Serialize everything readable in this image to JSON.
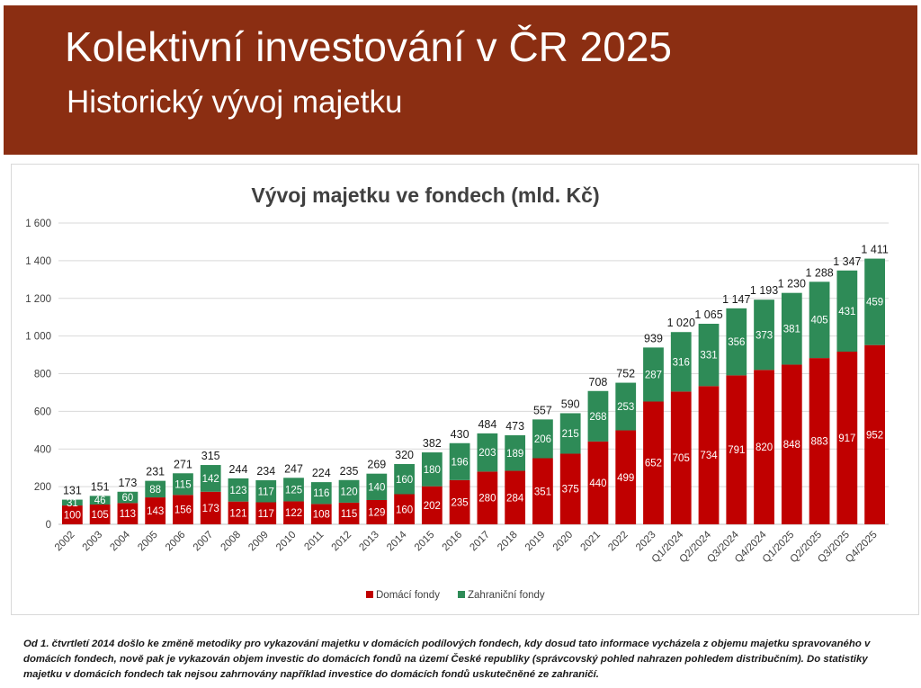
{
  "header": {
    "title": "Kolektivní investování v ČR 2025",
    "subtitle": "Historický vývoj majetku"
  },
  "colors": {
    "banner": "#8b2e12",
    "domestic": "#c00000",
    "foreign": "#2e8b57"
  },
  "chart_data": {
    "type": "bar",
    "stacked": true,
    "title": "Vývoj majetku ve fondech (mld. Kč)",
    "xlabel": "",
    "ylabel": "",
    "ylim": [
      0,
      1600
    ],
    "yticks": [
      "0",
      "200",
      "400",
      "600",
      "800",
      "1 000",
      "1 200",
      "1 400",
      "1 600"
    ],
    "grid": true,
    "legend_position": "bottom",
    "categories": [
      "2002",
      "2003",
      "2004",
      "2005",
      "2006",
      "2007",
      "2008",
      "2009",
      "2010",
      "2011",
      "2012",
      "2013",
      "2014",
      "2015",
      "2016",
      "2017",
      "2018",
      "2019",
      "2020",
      "2021",
      "2022",
      "2023",
      "Q1/2024",
      "Q2/2024",
      "Q3/2024",
      "Q4/2024",
      "Q1/2025",
      "Q2/2025",
      "Q3/2025",
      "Q4/2025"
    ],
    "series": [
      {
        "name": "Domácí fondy",
        "color": "#c00000",
        "values": [
          100,
          105,
          113,
          143,
          156,
          173,
          121,
          117,
          122,
          108,
          115,
          129,
          160,
          202,
          235,
          280,
          284,
          351,
          375,
          440,
          499,
          652,
          705,
          734,
          791,
          820,
          848,
          883,
          917,
          952
        ]
      },
      {
        "name": "Zahraniční fondy",
        "color": "#2e8b57",
        "values": [
          31,
          46,
          60,
          88,
          115,
          142,
          123,
          117,
          125,
          116,
          120,
          140,
          160,
          180,
          196,
          203,
          189,
          206,
          215,
          268,
          253,
          287,
          316,
          331,
          356,
          373,
          381,
          405,
          431,
          459
        ]
      }
    ],
    "totals": [
      "131",
      "151",
      "173",
      "231",
      "271",
      "315",
      "244",
      "234",
      "247",
      "224",
      "235",
      "269",
      "320",
      "382",
      "430",
      "484",
      "473",
      "557",
      "590",
      "708",
      "752",
      "939",
      "1 020",
      "1 065",
      "1 147",
      "1 193",
      "1 230",
      "1 288",
      "1 347",
      "1 411"
    ]
  },
  "footnote": "Od 1. čtvrtletí 2014 došlo ke změně metodiky pro vykazování majetku v domácích podílových fondech, kdy dosud tato informace vycházela z objemu majetku spravovaného v domácích fondech, nově pak je vykazován objem investic do domácích fondů na území České republiky (správcovský pohled nahrazen pohledem distribučním). Do statistiky majetku v domácích fondech tak nejsou zahrnovány například investice do domácích fondů uskutečněné ze zahraničí."
}
